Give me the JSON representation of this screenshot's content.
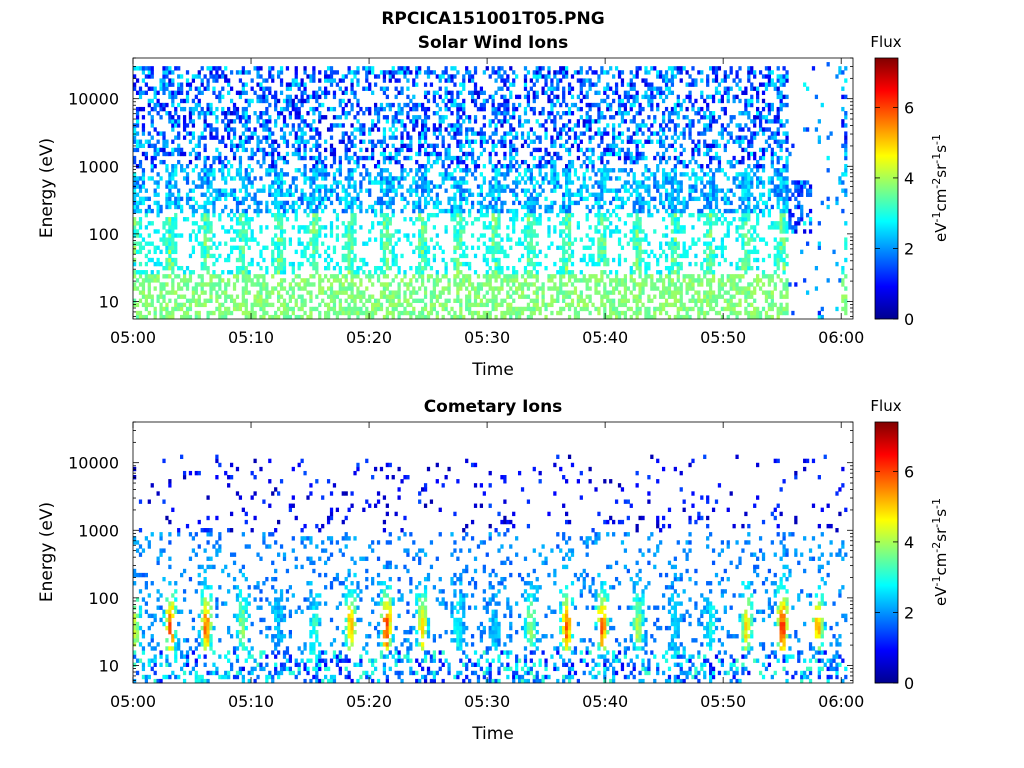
{
  "figure_title": "RPCICA151001T05.PNG",
  "chart_data": [
    {
      "type": "heatmap",
      "title": "Solar Wind Ions",
      "xlabel": "Time",
      "ylabel": "Energy (eV)",
      "x_ticks": [
        "05:00",
        "05:10",
        "05:20",
        "05:30",
        "05:40",
        "05:50",
        "06:00"
      ],
      "x_range": [
        "05:00",
        "06:01"
      ],
      "y_ticks": [
        10,
        100,
        1000,
        10000
      ],
      "y_range": [
        5.5,
        40000
      ],
      "y_scale": "log",
      "colorbar": {
        "title": "Flux",
        "label": "eV-1cm-2sr-1s-1",
        "ticks": [
          0,
          2,
          4,
          6
        ],
        "range": [
          0,
          7.4
        ],
        "colormap": "jet"
      },
      "description": "Fine-grained scatter at high energies (~1000-20000 eV) in blue/cyan; periodic bursts near 100-500 eV; green band near 5-30 eV; data gap after ~05:55 with sparse values at 06:00."
    },
    {
      "type": "heatmap",
      "title": "Cometary Ions",
      "xlabel": "Time",
      "ylabel": "Energy (eV)",
      "x_ticks": [
        "05:00",
        "05:10",
        "05:20",
        "05:30",
        "05:40",
        "05:50",
        "06:00"
      ],
      "x_range": [
        "05:00",
        "06:01"
      ],
      "y_ticks": [
        10,
        100,
        1000,
        10000
      ],
      "y_range": [
        5.5,
        40000
      ],
      "y_scale": "log",
      "colorbar": {
        "title": "Flux",
        "label": "eV-1cm-2sr-1s-1",
        "ticks": [
          0,
          2,
          4,
          6
        ],
        "range": [
          0,
          7.4
        ],
        "colormap": "jet"
      },
      "description": "Periodic ion bursts roughly every 3 min peaking near 30-100 eV with flux up to ~5.5; sparse scatter above 1000 eV."
    }
  ]
}
